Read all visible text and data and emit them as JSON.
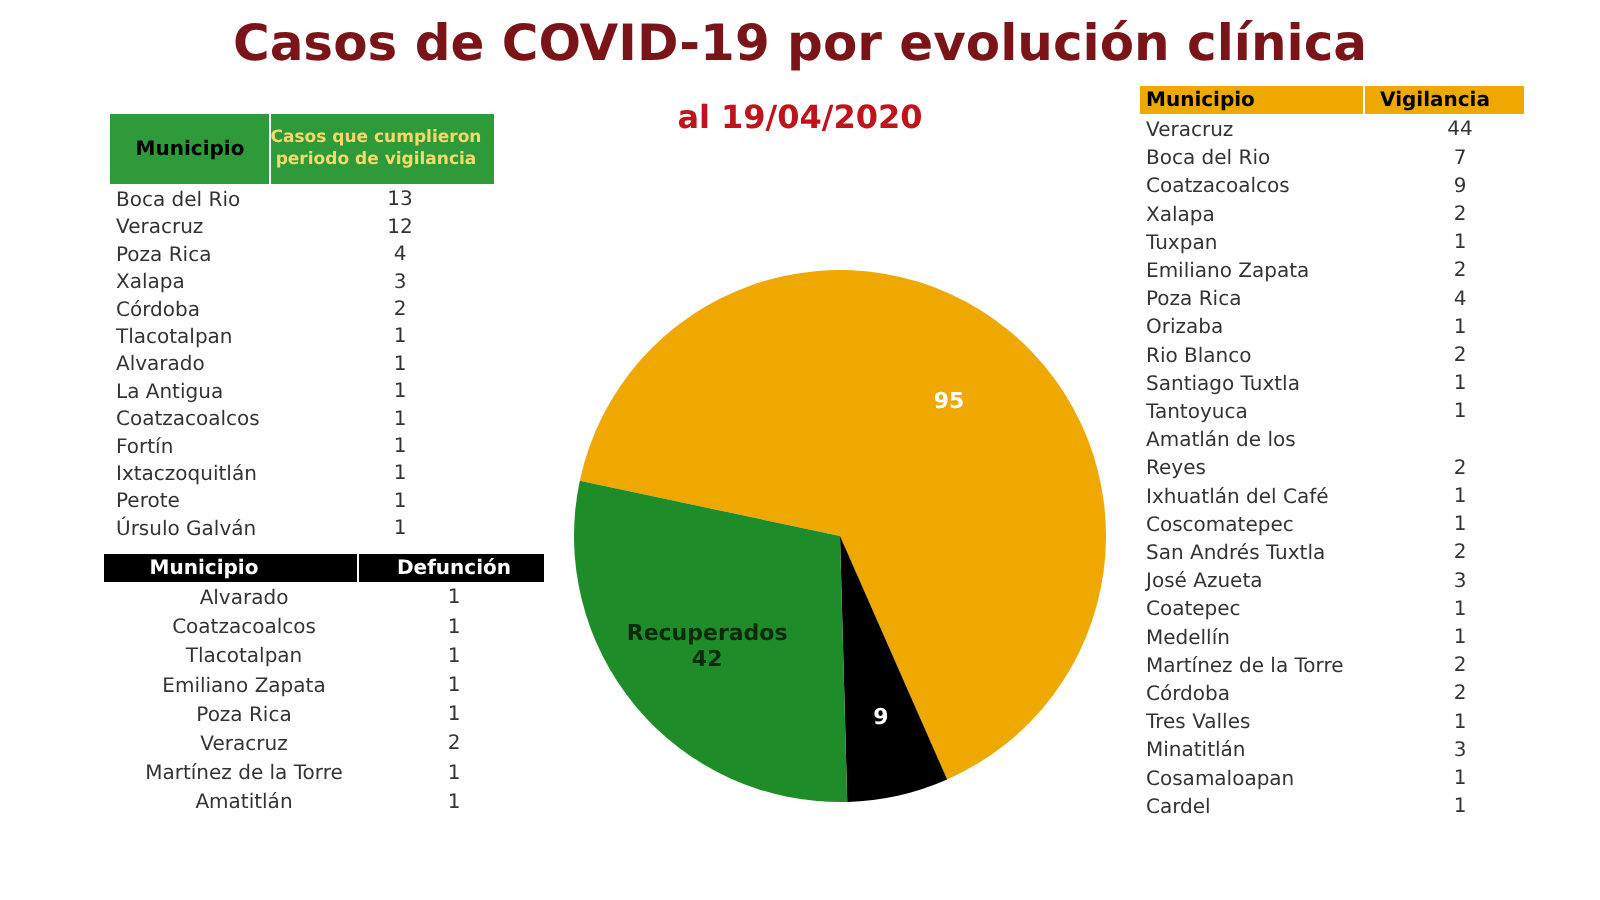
{
  "chart_data": [
    {
      "type": "pie",
      "title": "Casos de COVID-19 por evolución clínica",
      "subtitle": "al 19/04/2020",
      "categories": [
        null,
        null,
        "Recuperados"
      ],
      "values": [
        95,
        9,
        42
      ],
      "colors": [
        "#eea800",
        "#000000",
        "#1f8c2a"
      ],
      "data_labels": true
    },
    {
      "type": "other",
      "xlabel": "Municipio",
      "ylabel": "Casos que cumplieron\nperiodo de vigilancia",
      "color": "#2e9a3a",
      "categories": [
        "Boca del Rio",
        "Veracruz",
        "Poza Rica",
        "Xalapa",
        "Córdoba",
        "Tlacotalpan",
        "Alvarado",
        "La Antigua",
        "Coatzacoalcos",
        "Fortín",
        "Ixtaczoquitlán",
        "Perote",
        "Úrsulo Galván"
      ],
      "values": [
        13,
        12,
        4,
        3,
        2,
        1,
        1,
        1,
        1,
        1,
        1,
        1,
        1
      ],
      "data_labels": true
    },
    {
      "type": "other",
      "xlabel": "Municipio",
      "ylabel": "Defunción",
      "color": "#000000",
      "categories": [
        "Alvarado",
        "Coatzacoalcos",
        "Tlacotalpan",
        "Emiliano Zapata",
        "Poza Rica",
        "Veracruz",
        "Martínez de la Torre",
        "Amatitlán"
      ],
      "values": [
        1,
        1,
        1,
        1,
        1,
        2,
        1,
        1
      ],
      "data_labels": true
    },
    {
      "type": "other",
      "xlabel": "Municipio",
      "ylabel": "Vigilancia",
      "color": "#eea800",
      "categories": [
        "Veracruz",
        "Boca del Rio",
        "Coatzacoalcos",
        "Xalapa",
        "Tuxpan",
        "Emiliano Zapata",
        "Poza Rica",
        "Orizaba",
        "Rio Blanco",
        "Santiago Tuxtla",
        "Tantoyuca",
        "Amatlán de los\nReyes",
        "Ixhuatlán del Café",
        "Coscomatepec",
        "San Andrés Tuxtla",
        "José Azueta",
        "Coatepec",
        "Medellín",
        "Martínez de la Torre",
        "Córdoba",
        "Tres Valles",
        "Minatitlán",
        "Cosamaloapan",
        "Cardel"
      ],
      "values": [
        44,
        7,
        9,
        2,
        1,
        2,
        4,
        1,
        2,
        1,
        1,
        2,
        1,
        1,
        2,
        3,
        1,
        1,
        2,
        2,
        1,
        3,
        1,
        1
      ],
      "data_labels": true
    }
  ]
}
